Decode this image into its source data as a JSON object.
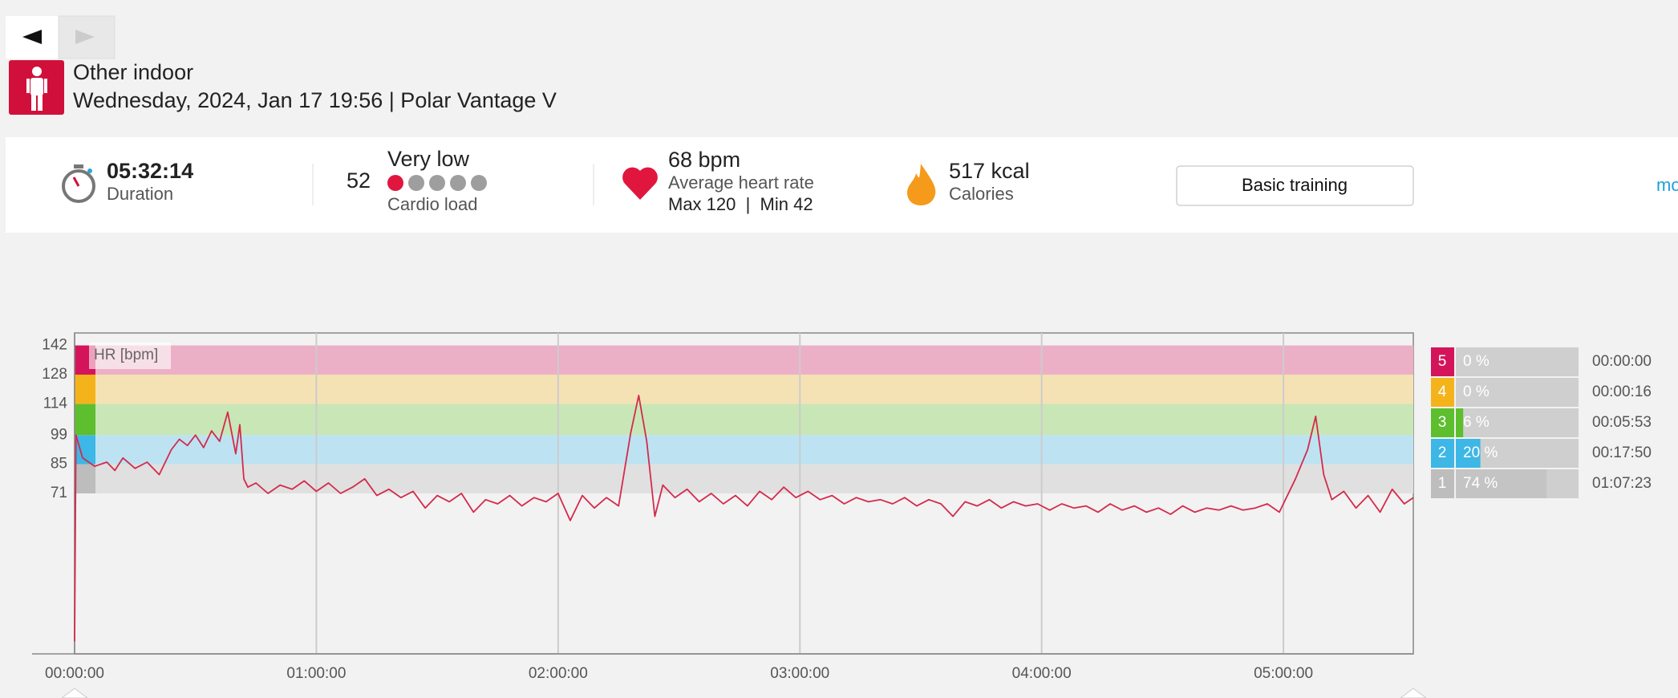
{
  "header": {
    "sport": "Other indoor",
    "subtitle": "Wednesday, 2024, Jan 17 19:56 | Polar Vantage V"
  },
  "summary": {
    "duration": {
      "value": "05:32:14",
      "label": "Duration"
    },
    "cardio_load": {
      "value": "52",
      "level_label": "Very low",
      "label": "Cardio load",
      "level": 1
    },
    "heart_rate": {
      "value": "68 bpm",
      "label": "Average heart rate",
      "range": "Max 120  |  Min 42"
    },
    "calories": {
      "value": "517 kcal",
      "label": "Calories"
    },
    "button": "Basic training",
    "link": "mo"
  },
  "chart_data": {
    "type": "line",
    "y_label": "HR [bpm]",
    "color": "#d42a4c",
    "xlim": [
      0,
      19934
    ],
    "xticks": [
      {
        "value": 0,
        "label": "00:00:00"
      },
      {
        "value": 3600,
        "label": "01:00:00"
      },
      {
        "value": 7200,
        "label": "02:00:00"
      },
      {
        "value": 10800,
        "label": "03:00:00"
      },
      {
        "value": 14400,
        "label": "04:00:00"
      },
      {
        "value": 18000,
        "label": "05:00:00"
      }
    ],
    "ylim": [
      -6,
      148
    ],
    "yticks": [
      71,
      85,
      99,
      114,
      128,
      142
    ],
    "band_colors": [
      "#e0e0e0",
      "#bde3f2",
      "#c9e6b6",
      "#f5e2b4",
      "#ecb0c6"
    ],
    "strip_colors": [
      "#bdbdbd",
      "#3cb7e6",
      "#5dbe2e",
      "#f5b31b",
      "#d4145a"
    ],
    "x": [
      0,
      20,
      120,
      300,
      480,
      600,
      720,
      900,
      1080,
      1260,
      1440,
      1560,
      1680,
      1800,
      1920,
      2040,
      2160,
      2280,
      2400,
      2460,
      2520,
      2580,
      2700,
      2880,
      3060,
      3240,
      3420,
      3600,
      3780,
      3960,
      4140,
      4320,
      4500,
      4680,
      4860,
      5040,
      5220,
      5400,
      5580,
      5760,
      5940,
      6120,
      6300,
      6480,
      6660,
      6840,
      7020,
      7200,
      7380,
      7560,
      7740,
      7920,
      8100,
      8280,
      8400,
      8520,
      8640,
      8760,
      8940,
      9120,
      9300,
      9480,
      9660,
      9840,
      10020,
      10200,
      10380,
      10560,
      10740,
      10920,
      11100,
      11280,
      11460,
      11640,
      11820,
      12000,
      12180,
      12360,
      12540,
      12720,
      12900,
      13080,
      13260,
      13440,
      13620,
      13800,
      13980,
      14160,
      14340,
      14520,
      14700,
      14880,
      15060,
      15240,
      15420,
      15600,
      15780,
      15960,
      16140,
      16320,
      16500,
      16680,
      16860,
      17040,
      17220,
      17400,
      17580,
      17760,
      17940,
      18180,
      18360,
      18480,
      18600,
      18720,
      18900,
      19080,
      19260,
      19440,
      19620,
      19800,
      19934
    ],
    "values": [
      0,
      99,
      88,
      84,
      86,
      82,
      88,
      83,
      86,
      80,
      92,
      97,
      94,
      99,
      93,
      101,
      96,
      110,
      90,
      104,
      78,
      74,
      76,
      71,
      75,
      73,
      77,
      72,
      76,
      71,
      74,
      78,
      70,
      73,
      69,
      72,
      64,
      70,
      67,
      71,
      62,
      68,
      66,
      70,
      65,
      69,
      67,
      71,
      58,
      70,
      64,
      69,
      65,
      100,
      118,
      96,
      60,
      75,
      69,
      73,
      67,
      71,
      66,
      70,
      65,
      72,
      68,
      74,
      69,
      72,
      68,
      70,
      66,
      69,
      67,
      68,
      66,
      69,
      65,
      68,
      66,
      60,
      67,
      65,
      68,
      64,
      67,
      65,
      66,
      63,
      66,
      64,
      65,
      62,
      66,
      63,
      65,
      62,
      64,
      61,
      65,
      62,
      64,
      63,
      65,
      63,
      64,
      66,
      62,
      78,
      92,
      108,
      80,
      68,
      72,
      64,
      70,
      62,
      73,
      66,
      69
    ]
  },
  "zone_summary": {
    "zones": [
      "5",
      "4",
      "3",
      "2",
      "1"
    ],
    "values": [
      0,
      0,
      6,
      20,
      74
    ],
    "value_labels": [
      "0 %",
      "0 %",
      "6 %",
      "20 %",
      "74 %"
    ],
    "times": [
      "00:00:00",
      "00:00:16",
      "00:05:53",
      "00:17:50",
      "01:07:23"
    ],
    "colors": [
      "#d4145a",
      "#f5b31b",
      "#5dbe2e",
      "#3cb7e6",
      "#bdbdbd"
    ]
  }
}
